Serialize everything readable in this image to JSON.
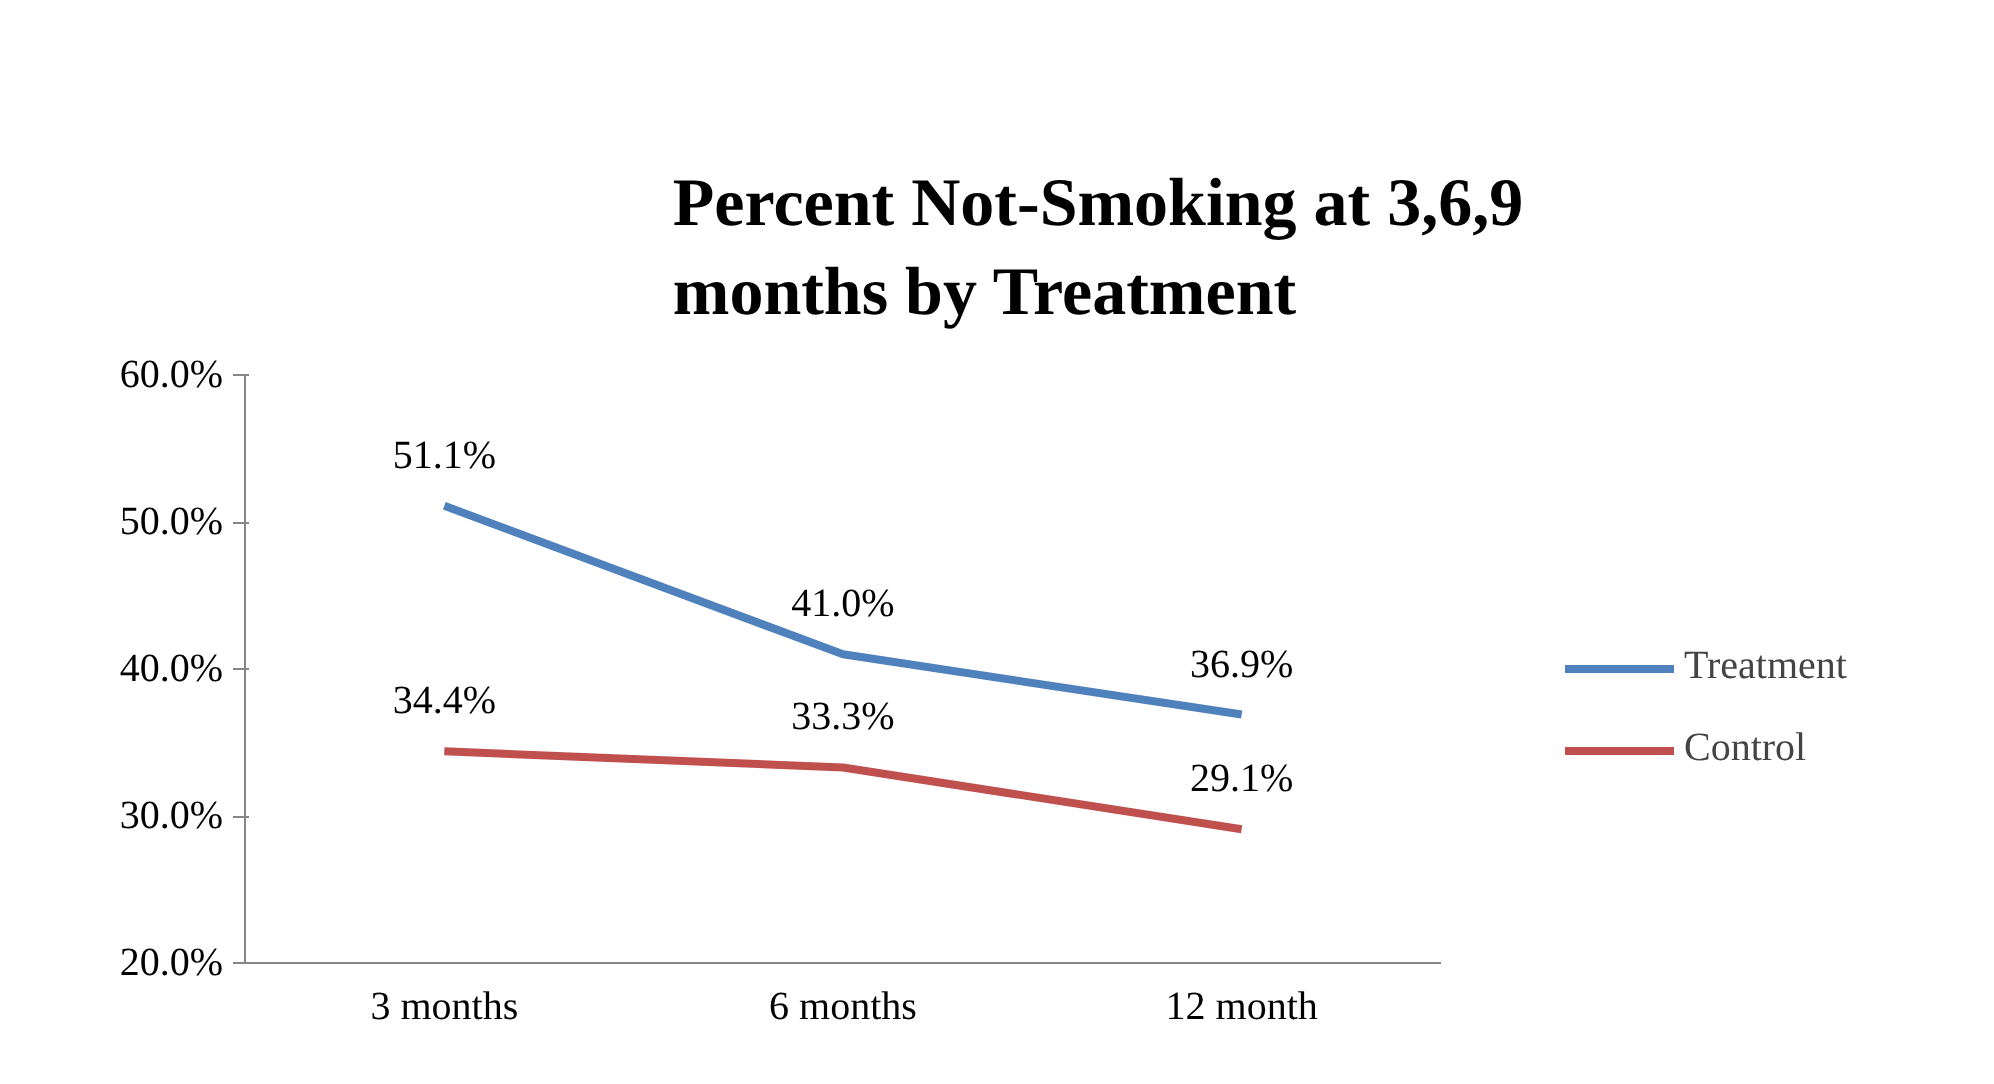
{
  "chart_data": {
    "type": "line",
    "title": "Percent Not-Smoking at 3,6,9 months by Treatment",
    "categories": [
      "3 months",
      "6 months",
      "12 month"
    ],
    "series": [
      {
        "name": "Treatment",
        "color": "#4f81bd",
        "values": [
          51.1,
          41.0,
          36.9
        ],
        "value_labels": [
          "51.1%",
          "41.0%",
          "36.9%"
        ]
      },
      {
        "name": "Control",
        "color": "#c0504d",
        "values": [
          34.4,
          33.3,
          29.1
        ],
        "value_labels": [
          "34.4%",
          "33.3%",
          "29.1%"
        ]
      }
    ],
    "ylim": [
      20,
      60
    ],
    "yticks": [
      {
        "value": 20,
        "label": "20.0%"
      },
      {
        "value": 30,
        "label": "30.0%"
      },
      {
        "value": 40,
        "label": "40.0%"
      },
      {
        "value": 50,
        "label": "50.0%"
      },
      {
        "value": 60,
        "label": "60.0%"
      }
    ],
    "grid": false,
    "legend": "right",
    "marker": "none",
    "line_style": "solid"
  }
}
